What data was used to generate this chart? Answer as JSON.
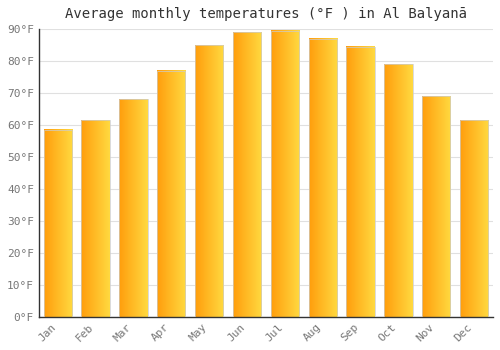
{
  "title": "Average monthly temperatures (°F ) in Al Balyanā",
  "months": [
    "Jan",
    "Feb",
    "Mar",
    "Apr",
    "May",
    "Jun",
    "Jul",
    "Aug",
    "Sep",
    "Oct",
    "Nov",
    "Dec"
  ],
  "values": [
    58.5,
    61.5,
    68,
    77,
    85,
    89,
    89.5,
    87,
    84.5,
    79,
    69,
    61.5
  ],
  "ylim": [
    0,
    90
  ],
  "yticks": [
    0,
    10,
    20,
    30,
    40,
    50,
    60,
    70,
    80,
    90
  ],
  "ytick_labels": [
    "0°F",
    "10°F",
    "20°F",
    "30°F",
    "40°F",
    "50°F",
    "60°F",
    "70°F",
    "80°F",
    "90°F"
  ],
  "background_color": "#ffffff",
  "plot_bg_color": "#ffffff",
  "grid_color": "#e0e0e0",
  "title_fontsize": 10,
  "tick_fontsize": 8,
  "bar_color_center": "#FFD000",
  "bar_color_edge": "#FFA000",
  "bar_width": 0.75,
  "axis_color": "#333333",
  "tick_color": "#777777",
  "title_color": "#333333"
}
